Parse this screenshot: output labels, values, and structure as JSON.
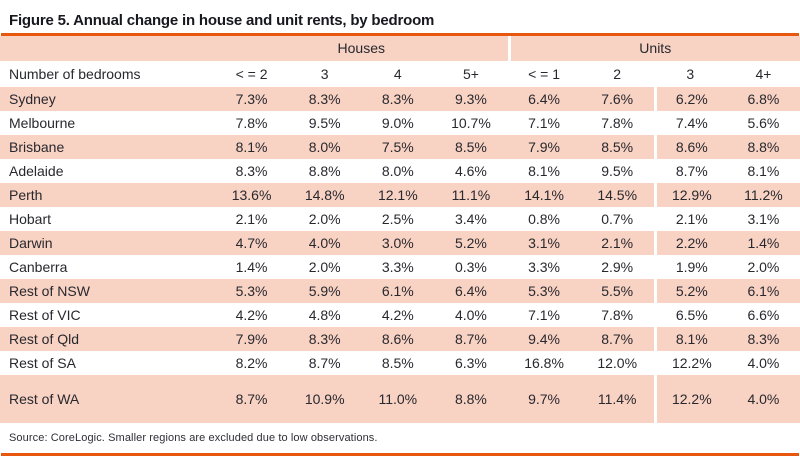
{
  "figure": {
    "title": "Figure 5. Annual change in house and unit rents, by bedroom",
    "source": "Source: CoreLogic. Smaller regions are excluded due to low observations."
  },
  "colors": {
    "accent_orange": "#E8570E",
    "row_salmon": "#F8D2C2",
    "title_text": "#17171F",
    "body_text": "#28282F"
  },
  "chart_data": {
    "type": "table",
    "title": "Figure 5. Annual change in house and unit rents, by bedroom",
    "corner_label": "Number of bedrooms",
    "column_groups": [
      {
        "label": "Houses",
        "span": 4
      },
      {
        "label": "Units",
        "span": 4
      }
    ],
    "columns": [
      "< = 2",
      "3",
      "4",
      "5+",
      "< = 1",
      "2",
      "3",
      "4+"
    ],
    "rows": [
      {
        "region": "Sydney",
        "values": [
          "7.3%",
          "8.3%",
          "8.3%",
          "9.3%",
          "6.4%",
          "7.6%",
          "6.2%",
          "6.8%"
        ]
      },
      {
        "region": "Melbourne",
        "values": [
          "7.8%",
          "9.5%",
          "9.0%",
          "10.7%",
          "7.1%",
          "7.8%",
          "7.4%",
          "5.6%"
        ]
      },
      {
        "region": "Brisbane",
        "values": [
          "8.1%",
          "8.0%",
          "7.5%",
          "8.5%",
          "7.9%",
          "8.5%",
          "8.6%",
          "8.8%"
        ]
      },
      {
        "region": "Adelaide",
        "values": [
          "8.3%",
          "8.8%",
          "8.0%",
          "4.6%",
          "8.1%",
          "9.5%",
          "8.7%",
          "8.1%"
        ]
      },
      {
        "region": "Perth",
        "values": [
          "13.6%",
          "14.8%",
          "12.1%",
          "11.1%",
          "14.1%",
          "14.5%",
          "12.9%",
          "11.2%"
        ]
      },
      {
        "region": "Hobart",
        "values": [
          "2.1%",
          "2.0%",
          "2.5%",
          "3.4%",
          "0.8%",
          "0.7%",
          "2.1%",
          "3.1%"
        ]
      },
      {
        "region": "Darwin",
        "values": [
          "4.7%",
          "4.0%",
          "3.0%",
          "5.2%",
          "3.1%",
          "2.1%",
          "2.2%",
          "1.4%"
        ]
      },
      {
        "region": "Canberra",
        "values": [
          "1.4%",
          "2.0%",
          "3.3%",
          "0.3%",
          "3.3%",
          "2.9%",
          "1.9%",
          "2.0%"
        ]
      },
      {
        "region": "Rest of NSW",
        "values": [
          "5.3%",
          "5.9%",
          "6.1%",
          "6.4%",
          "5.3%",
          "5.5%",
          "5.2%",
          "6.1%"
        ]
      },
      {
        "region": "Rest of VIC",
        "values": [
          "4.2%",
          "4.8%",
          "4.2%",
          "4.0%",
          "7.1%",
          "7.8%",
          "6.5%",
          "6.6%"
        ]
      },
      {
        "region": "Rest of Qld",
        "values": [
          "7.9%",
          "8.3%",
          "8.6%",
          "8.7%",
          "9.4%",
          "8.7%",
          "8.1%",
          "8.3%"
        ]
      },
      {
        "region": "Rest of SA",
        "values": [
          "8.2%",
          "8.7%",
          "8.5%",
          "6.3%",
          "16.8%",
          "12.0%",
          "12.2%",
          "4.0%"
        ]
      },
      {
        "region": "Rest of WA",
        "values": [
          "8.7%",
          "10.9%",
          "11.0%",
          "8.8%",
          "9.7%",
          "11.4%",
          "12.2%",
          "4.0%"
        ]
      }
    ],
    "source": "Source: CoreLogic. Smaller regions are excluded due to low observations.",
    "layout": {
      "zebra_striping": true,
      "first_row_shaded": true,
      "last_row_double_height": true,
      "white_divider_after_column_index": 5,
      "group_divider_after_column_index": 3
    }
  }
}
